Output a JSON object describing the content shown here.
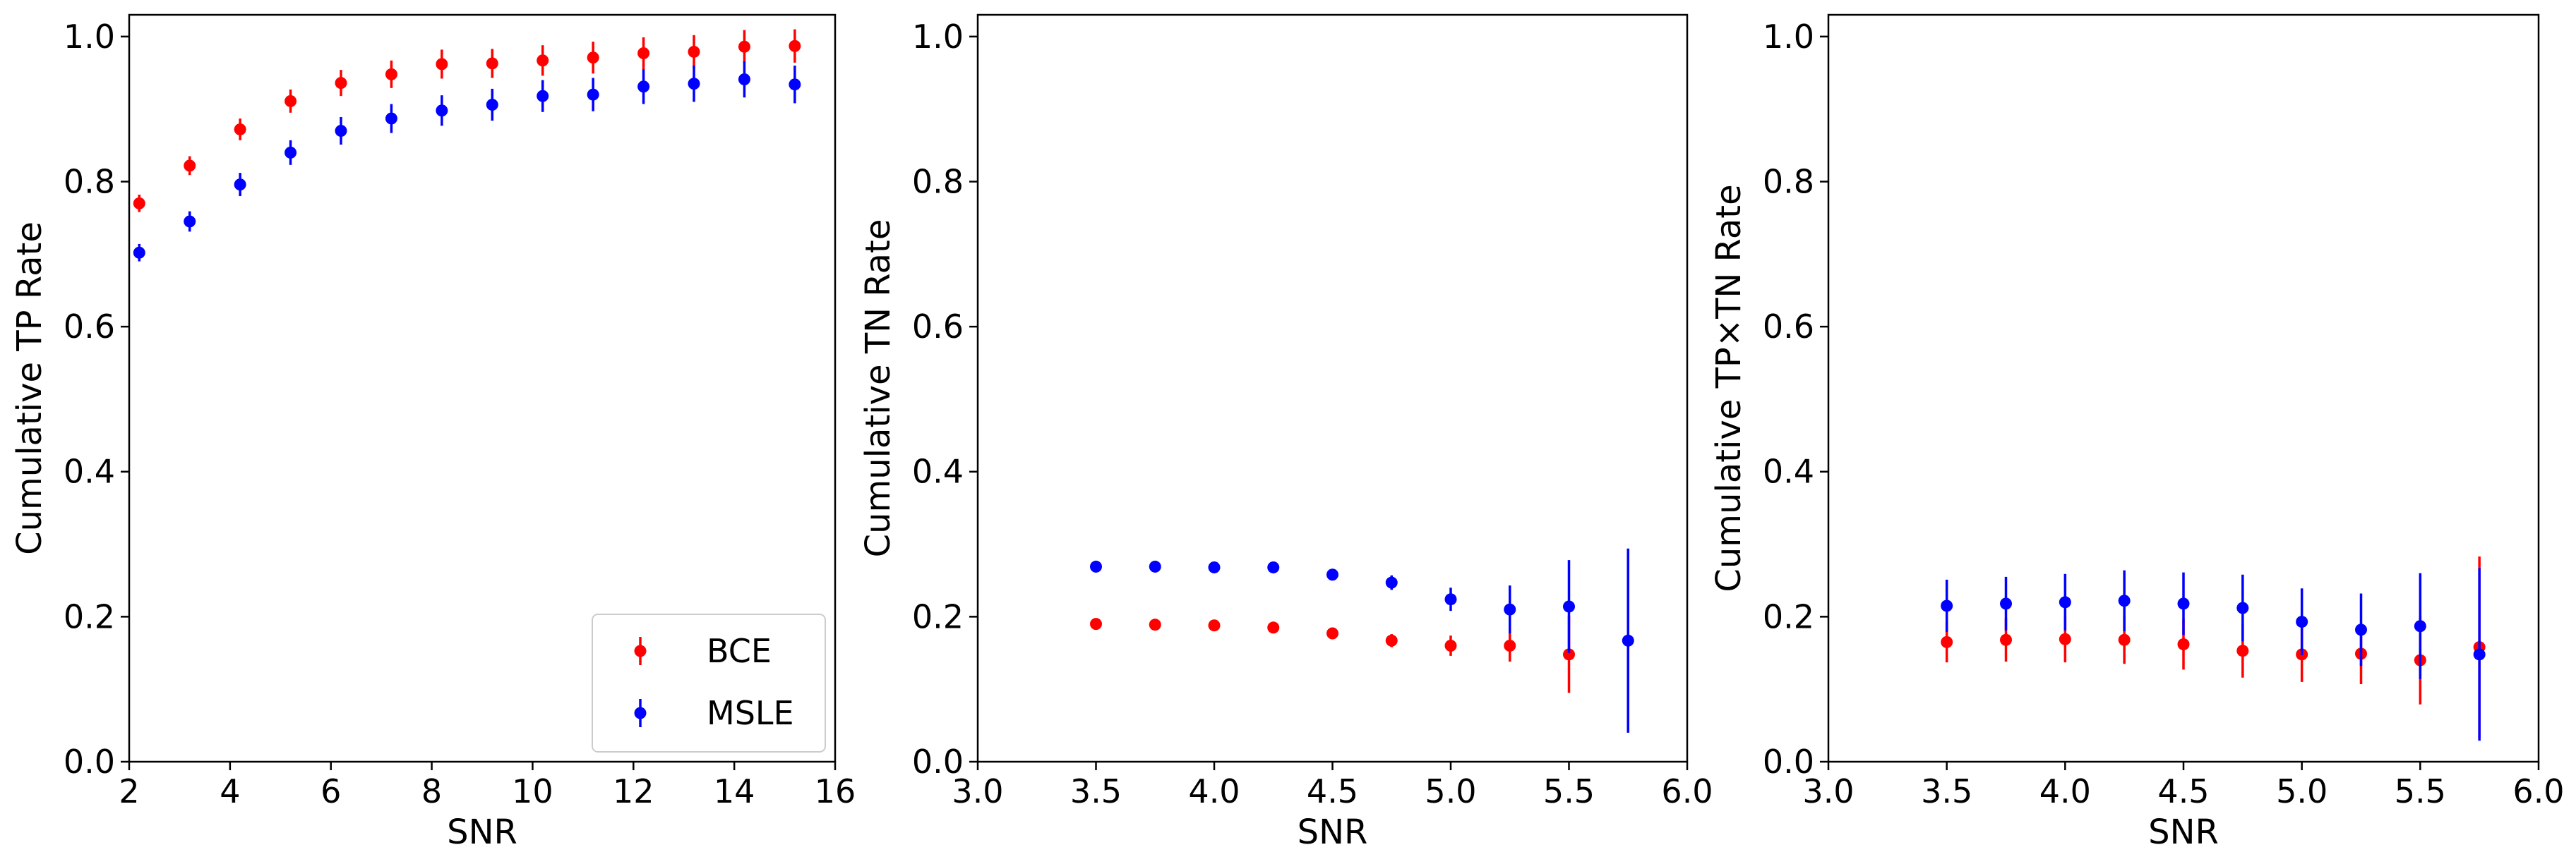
{
  "colors": {
    "bce": "#ff0000",
    "msle": "#0000ff",
    "axes": "#000000",
    "background": "#ffffff"
  },
  "chart_data": [
    {
      "type": "scatter",
      "title": "",
      "xlabel": "SNR",
      "ylabel": "Cumulative TP Rate",
      "xlim": [
        2,
        16
      ],
      "ylim": [
        0,
        1.03
      ],
      "xticks": [
        "2",
        "4",
        "6",
        "8",
        "10",
        "12",
        "14",
        "16"
      ],
      "yticks": [
        "0.0",
        "0.2",
        "0.4",
        "0.6",
        "0.8",
        "1.0"
      ],
      "grid": false,
      "legend": {
        "placement": "lower-right",
        "entries": [
          "BCE",
          "MSLE"
        ]
      },
      "series": [
        {
          "name": "BCE",
          "x": [
            2.2,
            3.2,
            4.2,
            5.2,
            6.2,
            7.2,
            8.2,
            9.2,
            10.2,
            11.2,
            12.2,
            13.2,
            14.2,
            15.2
          ],
          "y": [
            0.77,
            0.822,
            0.872,
            0.911,
            0.936,
            0.948,
            0.962,
            0.963,
            0.967,
            0.971,
            0.977,
            0.979,
            0.986,
            0.987
          ],
          "yerr": [
            0.012,
            0.013,
            0.015,
            0.016,
            0.018,
            0.019,
            0.02,
            0.02,
            0.021,
            0.022,
            0.022,
            0.023,
            0.023,
            0.023
          ]
        },
        {
          "name": "MSLE",
          "x": [
            2.2,
            3.2,
            4.2,
            5.2,
            6.2,
            7.2,
            8.2,
            9.2,
            10.2,
            11.2,
            12.2,
            13.2,
            14.2,
            15.2
          ],
          "y": [
            0.702,
            0.745,
            0.796,
            0.84,
            0.87,
            0.887,
            0.898,
            0.906,
            0.918,
            0.92,
            0.931,
            0.935,
            0.941,
            0.934
          ],
          "yerr": [
            0.012,
            0.014,
            0.016,
            0.017,
            0.019,
            0.02,
            0.021,
            0.022,
            0.022,
            0.023,
            0.024,
            0.025,
            0.025,
            0.026
          ]
        }
      ]
    },
    {
      "type": "scatter",
      "title": "",
      "xlabel": "SNR",
      "ylabel": "Cumulative TN Rate",
      "xlim": [
        3.0,
        6.0
      ],
      "ylim": [
        0,
        1.03
      ],
      "xticks": [
        "3.0",
        "3.5",
        "4.0",
        "4.5",
        "5.0",
        "5.5",
        "6.0"
      ],
      "yticks": [
        "0.0",
        "0.2",
        "0.4",
        "0.6",
        "0.8",
        "1.0"
      ],
      "grid": false,
      "series": [
        {
          "name": "BCE",
          "x": [
            3.5,
            3.75,
            4.0,
            4.25,
            4.5,
            4.75,
            5.0,
            5.25,
            5.5
          ],
          "y": [
            0.19,
            0.189,
            0.188,
            0.185,
            0.177,
            0.167,
            0.16,
            0.16,
            0.148
          ],
          "yerr": [
            0.005,
            0.006,
            0.006,
            0.007,
            0.008,
            0.009,
            0.014,
            0.022,
            0.053
          ]
        },
        {
          "name": "MSLE",
          "x": [
            3.5,
            3.75,
            4.0,
            4.25,
            4.5,
            4.75,
            5.0,
            5.25,
            5.5,
            5.75
          ],
          "y": [
            0.269,
            0.269,
            0.268,
            0.268,
            0.258,
            0.247,
            0.224,
            0.21,
            0.214,
            0.167
          ],
          "yerr": [
            0.005,
            0.005,
            0.006,
            0.006,
            0.007,
            0.01,
            0.016,
            0.033,
            0.064,
            0.127
          ]
        }
      ]
    },
    {
      "type": "scatter",
      "title": "",
      "xlabel": "SNR",
      "ylabel": "Cumulative TP×TN Rate",
      "xlim": [
        3.0,
        6.0
      ],
      "ylim": [
        0,
        1.03
      ],
      "xticks": [
        "3.0",
        "3.5",
        "4.0",
        "4.5",
        "5.0",
        "5.5",
        "6.0"
      ],
      "yticks": [
        "0.0",
        "0.2",
        "0.4",
        "0.6",
        "0.8",
        "1.0"
      ],
      "grid": false,
      "series": [
        {
          "name": "BCE",
          "x": [
            3.5,
            3.75,
            4.0,
            4.25,
            4.5,
            4.75,
            5.0,
            5.25,
            5.5,
            5.75
          ],
          "y": [
            0.165,
            0.168,
            0.169,
            0.168,
            0.162,
            0.153,
            0.148,
            0.149,
            0.14,
            0.158
          ],
          "yerr": [
            0.028,
            0.03,
            0.032,
            0.033,
            0.035,
            0.037,
            0.038,
            0.042,
            0.061,
            0.125
          ]
        },
        {
          "name": "MSLE",
          "x": [
            3.5,
            3.75,
            4.0,
            4.25,
            4.5,
            4.75,
            5.0,
            5.25,
            5.5,
            5.75
          ],
          "y": [
            0.215,
            0.218,
            0.22,
            0.222,
            0.218,
            0.212,
            0.193,
            0.182,
            0.187,
            0.148
          ],
          "yerr": [
            0.036,
            0.037,
            0.039,
            0.042,
            0.043,
            0.046,
            0.046,
            0.05,
            0.073,
            0.119
          ]
        }
      ]
    }
  ]
}
